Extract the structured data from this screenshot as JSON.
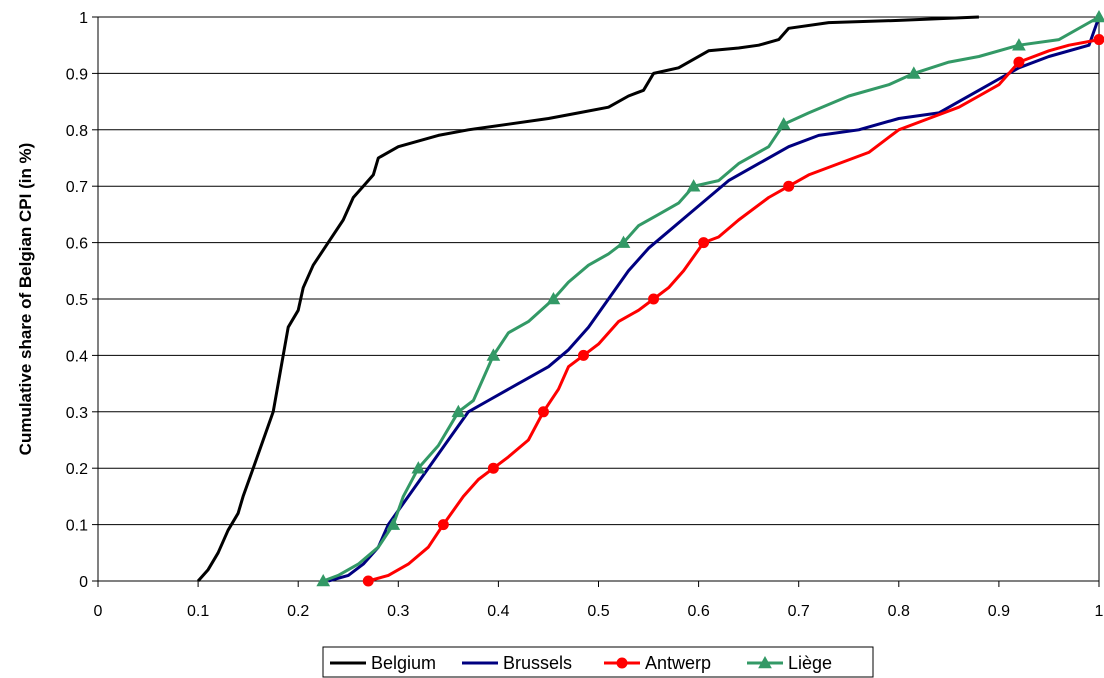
{
  "chart_data": {
    "type": "line",
    "title": "",
    "xlabel": "",
    "ylabel": "Cumulative share of Belgian CPI (in %)",
    "xlim": [
      0,
      1
    ],
    "ylim": [
      0,
      1
    ],
    "x_ticks": [
      "0",
      "0.1",
      "0.2",
      "0.3",
      "0.4",
      "0.5",
      "0.6",
      "0.7",
      "0.8",
      "0.9",
      "1"
    ],
    "y_ticks": [
      "0",
      "0.1",
      "0.2",
      "0.3",
      "0.4",
      "0.5",
      "0.6",
      "0.7",
      "0.8",
      "0.9",
      "1"
    ],
    "grid": "horizontal",
    "legend_position": "bottom",
    "series": [
      {
        "name": "Belgium",
        "color": "#000000",
        "marker": "none",
        "points": [
          [
            0.1,
            0.0
          ],
          [
            0.11,
            0.02
          ],
          [
            0.12,
            0.05
          ],
          [
            0.13,
            0.09
          ],
          [
            0.14,
            0.12
          ],
          [
            0.145,
            0.15
          ],
          [
            0.155,
            0.2
          ],
          [
            0.165,
            0.25
          ],
          [
            0.175,
            0.3
          ],
          [
            0.18,
            0.35
          ],
          [
            0.185,
            0.4
          ],
          [
            0.19,
            0.45
          ],
          [
            0.2,
            0.48
          ],
          [
            0.205,
            0.52
          ],
          [
            0.215,
            0.56
          ],
          [
            0.23,
            0.6
          ],
          [
            0.245,
            0.64
          ],
          [
            0.255,
            0.68
          ],
          [
            0.265,
            0.7
          ],
          [
            0.275,
            0.72
          ],
          [
            0.28,
            0.75
          ],
          [
            0.3,
            0.77
          ],
          [
            0.32,
            0.78
          ],
          [
            0.34,
            0.79
          ],
          [
            0.37,
            0.8
          ],
          [
            0.41,
            0.81
          ],
          [
            0.45,
            0.82
          ],
          [
            0.48,
            0.83
          ],
          [
            0.51,
            0.84
          ],
          [
            0.53,
            0.86
          ],
          [
            0.545,
            0.87
          ],
          [
            0.555,
            0.9
          ],
          [
            0.58,
            0.91
          ],
          [
            0.61,
            0.94
          ],
          [
            0.64,
            0.945
          ],
          [
            0.66,
            0.95
          ],
          [
            0.68,
            0.96
          ],
          [
            0.69,
            0.98
          ],
          [
            0.73,
            0.99
          ],
          [
            0.8,
            0.994
          ],
          [
            0.88,
            1.0
          ]
        ]
      },
      {
        "name": "Brussels",
        "color": "#000080",
        "marker": "none",
        "points": [
          [
            0.23,
            0.0
          ],
          [
            0.25,
            0.01
          ],
          [
            0.265,
            0.03
          ],
          [
            0.28,
            0.06
          ],
          [
            0.29,
            0.1
          ],
          [
            0.31,
            0.15
          ],
          [
            0.33,
            0.2
          ],
          [
            0.35,
            0.25
          ],
          [
            0.37,
            0.3
          ],
          [
            0.39,
            0.32
          ],
          [
            0.42,
            0.35
          ],
          [
            0.45,
            0.38
          ],
          [
            0.47,
            0.41
          ],
          [
            0.49,
            0.45
          ],
          [
            0.51,
            0.5
          ],
          [
            0.53,
            0.55
          ],
          [
            0.55,
            0.59
          ],
          [
            0.57,
            0.62
          ],
          [
            0.59,
            0.65
          ],
          [
            0.61,
            0.68
          ],
          [
            0.63,
            0.71
          ],
          [
            0.66,
            0.74
          ],
          [
            0.69,
            0.77
          ],
          [
            0.72,
            0.79
          ],
          [
            0.76,
            0.8
          ],
          [
            0.8,
            0.82
          ],
          [
            0.84,
            0.83
          ],
          [
            0.86,
            0.85
          ],
          [
            0.88,
            0.87
          ],
          [
            0.9,
            0.89
          ],
          [
            0.92,
            0.91
          ],
          [
            0.95,
            0.93
          ],
          [
            0.99,
            0.95
          ],
          [
            1.0,
            1.0
          ]
        ]
      },
      {
        "name": "Antwerp",
        "color": "#ff0000",
        "marker": "circle",
        "marker_x": [
          0.27,
          0.345,
          0.395,
          0.445,
          0.485,
          0.555,
          0.605,
          0.69,
          0.92,
          1.0
        ],
        "points": [
          [
            0.27,
            0.0
          ],
          [
            0.29,
            0.01
          ],
          [
            0.31,
            0.03
          ],
          [
            0.33,
            0.06
          ],
          [
            0.345,
            0.1
          ],
          [
            0.365,
            0.15
          ],
          [
            0.38,
            0.18
          ],
          [
            0.395,
            0.2
          ],
          [
            0.41,
            0.22
          ],
          [
            0.43,
            0.25
          ],
          [
            0.445,
            0.3
          ],
          [
            0.46,
            0.34
          ],
          [
            0.47,
            0.38
          ],
          [
            0.485,
            0.4
          ],
          [
            0.5,
            0.42
          ],
          [
            0.52,
            0.46
          ],
          [
            0.54,
            0.48
          ],
          [
            0.555,
            0.5
          ],
          [
            0.57,
            0.52
          ],
          [
            0.585,
            0.55
          ],
          [
            0.605,
            0.6
          ],
          [
            0.62,
            0.61
          ],
          [
            0.64,
            0.64
          ],
          [
            0.67,
            0.68
          ],
          [
            0.69,
            0.7
          ],
          [
            0.71,
            0.72
          ],
          [
            0.74,
            0.74
          ],
          [
            0.77,
            0.76
          ],
          [
            0.8,
            0.8
          ],
          [
            0.83,
            0.82
          ],
          [
            0.86,
            0.84
          ],
          [
            0.88,
            0.86
          ],
          [
            0.9,
            0.88
          ],
          [
            0.92,
            0.92
          ],
          [
            0.95,
            0.94
          ],
          [
            0.97,
            0.95
          ],
          [
            1.0,
            0.96
          ]
        ]
      },
      {
        "name": "Liège",
        "color": "#339966",
        "marker": "triangle",
        "marker_x": [
          0.225,
          0.295,
          0.32,
          0.36,
          0.395,
          0.455,
          0.525,
          0.595,
          0.685,
          0.815,
          0.92,
          1.0
        ],
        "points": [
          [
            0.225,
            0.0
          ],
          [
            0.24,
            0.01
          ],
          [
            0.26,
            0.03
          ],
          [
            0.28,
            0.06
          ],
          [
            0.295,
            0.1
          ],
          [
            0.305,
            0.15
          ],
          [
            0.32,
            0.2
          ],
          [
            0.34,
            0.24
          ],
          [
            0.36,
            0.3
          ],
          [
            0.375,
            0.32
          ],
          [
            0.385,
            0.36
          ],
          [
            0.395,
            0.4
          ],
          [
            0.41,
            0.44
          ],
          [
            0.43,
            0.46
          ],
          [
            0.455,
            0.5
          ],
          [
            0.47,
            0.53
          ],
          [
            0.49,
            0.56
          ],
          [
            0.51,
            0.58
          ],
          [
            0.525,
            0.6
          ],
          [
            0.54,
            0.63
          ],
          [
            0.56,
            0.65
          ],
          [
            0.58,
            0.67
          ],
          [
            0.595,
            0.7
          ],
          [
            0.62,
            0.71
          ],
          [
            0.64,
            0.74
          ],
          [
            0.67,
            0.77
          ],
          [
            0.685,
            0.81
          ],
          [
            0.71,
            0.83
          ],
          [
            0.75,
            0.86
          ],
          [
            0.79,
            0.88
          ],
          [
            0.815,
            0.9
          ],
          [
            0.85,
            0.92
          ],
          [
            0.88,
            0.93
          ],
          [
            0.92,
            0.95
          ],
          [
            0.96,
            0.96
          ],
          [
            1.0,
            1.0
          ]
        ]
      }
    ]
  }
}
